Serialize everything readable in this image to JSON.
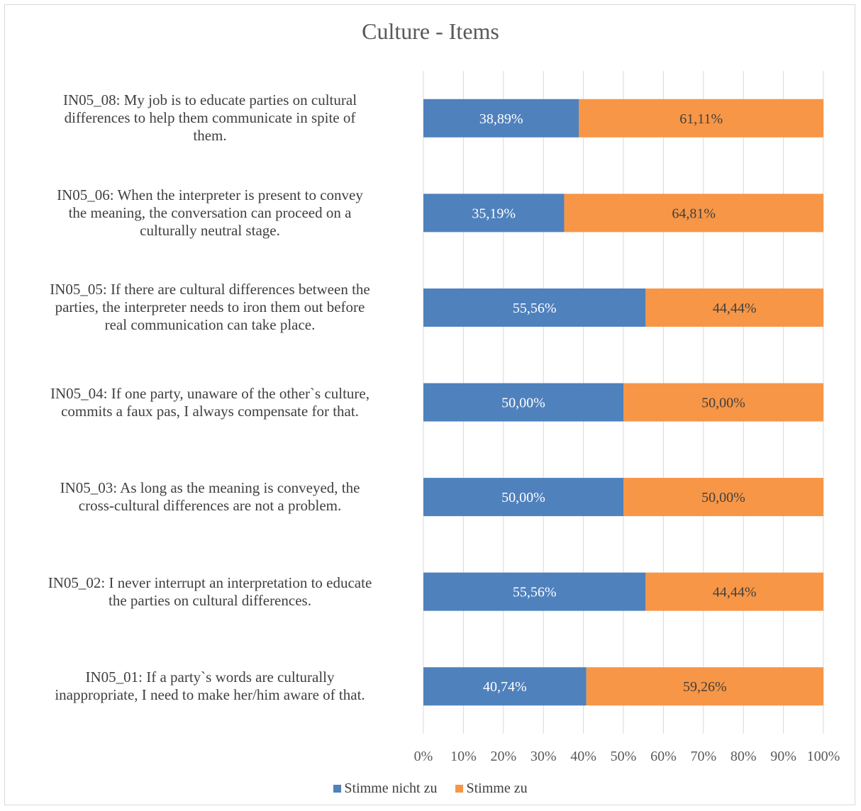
{
  "chart_data": {
    "type": "bar",
    "orientation": "horizontal",
    "stacked": true,
    "title": "Culture - Items",
    "categories": [
      "IN05_08: My job is to educate parties on cultural differences to help them communicate in spite of them.",
      "IN05_06: When the interpreter is present to convey the meaning, the conversation can proceed on a culturally neutral stage.",
      "IN05_05: If there are cultural differences between the parties, the interpreter needs to iron them out before real communication can take place.",
      "IN05_04: If one party, unaware of the other`s culture, commits a faux pas, I always compensate for that.",
      "IN05_03: As long as the meaning is conveyed, the cross-cultural differences are not a problem.",
      "IN05_02: I never interrupt an interpretation to educate the parties on cultural differences.",
      "IN05_01: If a party`s words are culturally inappropriate, I need to make her/him aware of that."
    ],
    "series": [
      {
        "name": "Stimme nicht zu",
        "color": "#4f81bd",
        "values": [
          38.89,
          35.19,
          55.56,
          50.0,
          50.0,
          55.56,
          40.74
        ],
        "labels": [
          "38,89%",
          "35,19%",
          "55,56%",
          "50,00%",
          "50,00%",
          "55,56%",
          "40,74%"
        ]
      },
      {
        "name": "Stimme zu",
        "color": "#f79646",
        "values": [
          61.11,
          64.81,
          44.44,
          50.0,
          50.0,
          44.44,
          59.26
        ],
        "labels": [
          "61,11%",
          "64,81%",
          "44,44%",
          "50,00%",
          "50,00%",
          "44,44%",
          "59,26%"
        ]
      }
    ],
    "xlim": [
      0,
      100
    ],
    "xticks": [
      "0%",
      "10%",
      "20%",
      "30%",
      "40%",
      "50%",
      "60%",
      "70%",
      "80%",
      "90%",
      "100%"
    ],
    "grid": true,
    "legend_position": "bottom"
  },
  "category_lines": [
    [
      "IN05_08: My job is to educate parties on cultural",
      "differences to help them communicate in spite of",
      "them."
    ],
    [
      "IN05_06: When the interpreter is present to convey",
      "the meaning, the conversation can proceed on a",
      "culturally neutral stage."
    ],
    [
      "IN05_05: If there are cultural differences between the",
      "parties, the interpreter needs to iron them out before",
      "real communication can take place."
    ],
    [
      "IN05_04: If one party, unaware of the other`s culture,",
      "commits a faux pas, I always compensate for that."
    ],
    [
      "IN05_03: As long as the meaning is conveyed, the",
      "cross-cultural differences are not a problem."
    ],
    [
      "IN05_02: I never interrupt an interpretation to educate",
      "the parties on cultural differences."
    ],
    [
      "IN05_01: If a party`s words are culturally",
      "inappropriate, I need to make her/him aware of that."
    ]
  ]
}
